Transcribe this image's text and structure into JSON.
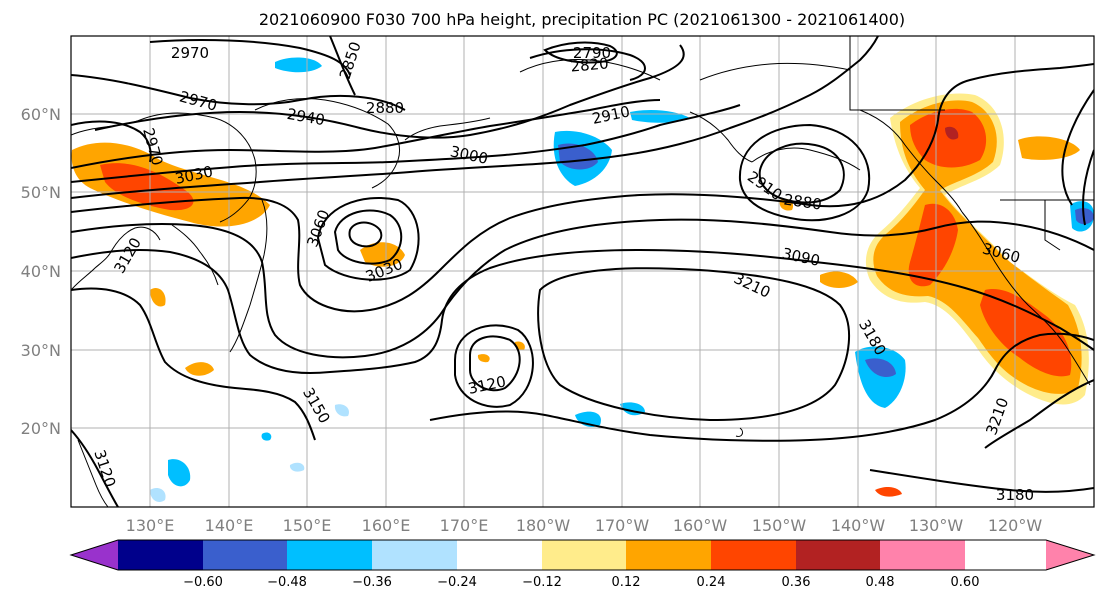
{
  "title": "2021060900 F030 700 hPa height, precipitation PC (2021061300 - 2021061400)",
  "map": {
    "lon_labels": [
      "130°E",
      "140°E",
      "150°E",
      "160°E",
      "170°E",
      "180°W",
      "170°W",
      "160°W",
      "150°W",
      "140°W",
      "130°W",
      "120°W"
    ],
    "lat_labels": [
      "60°N",
      "50°N",
      "40°N",
      "30°N",
      "20°N"
    ],
    "contour_labels": [
      {
        "id": "c2970a",
        "text": "2970"
      },
      {
        "id": "c2850",
        "text": "2850"
      },
      {
        "id": "c2790",
        "text": "2790"
      },
      {
        "id": "c2820",
        "text": "2820"
      },
      {
        "id": "c2970b",
        "text": "2970"
      },
      {
        "id": "c2940",
        "text": "2940"
      },
      {
        "id": "c2880a",
        "text": "2880"
      },
      {
        "id": "c2910a",
        "text": "2910"
      },
      {
        "id": "c2970c",
        "text": "2970"
      },
      {
        "id": "c3000",
        "text": "3000"
      },
      {
        "id": "c3030a",
        "text": "3030"
      },
      {
        "id": "c2910b",
        "text": "2910"
      },
      {
        "id": "c2880b",
        "text": "2880"
      },
      {
        "id": "c3120a",
        "text": "3120"
      },
      {
        "id": "c3060a",
        "text": "3060"
      },
      {
        "id": "c3030b",
        "text": "3030"
      },
      {
        "id": "c3090",
        "text": "3090"
      },
      {
        "id": "c3060b",
        "text": "3060"
      },
      {
        "id": "c3210a",
        "text": "3210"
      },
      {
        "id": "c3180a",
        "text": "3180"
      },
      {
        "id": "c3120b",
        "text": "3120"
      },
      {
        "id": "c3150",
        "text": "3150"
      },
      {
        "id": "c3120c",
        "text": "3120"
      },
      {
        "id": "c3210b",
        "text": "3210"
      },
      {
        "id": "c3180b",
        "text": "3180"
      }
    ]
  },
  "colorbar": {
    "labels": [
      "−0.60",
      "−0.48",
      "−0.36",
      "−0.24",
      "−0.12",
      "0.12",
      "0.24",
      "0.36",
      "0.48",
      "0.60"
    ],
    "colors": [
      "#9932cc",
      "#00008b",
      "#3a5fcd",
      "#00bfff",
      "#b0e2ff",
      "#ffffff",
      "#ffec8b",
      "#ffa500",
      "#ff4500",
      "#b22222",
      "#ff82ab"
    ]
  },
  "colors": {
    "shade_yellow": "#ffec8b",
    "shade_orange": "#ffa500",
    "shade_redorange": "#ff4500",
    "shade_darkred": "#b22222",
    "shade_lightblue": "#b0e2ff",
    "shade_blue": "#00bfff",
    "shade_royal": "#3a5fcd",
    "shade_navy": "#00008b"
  }
}
